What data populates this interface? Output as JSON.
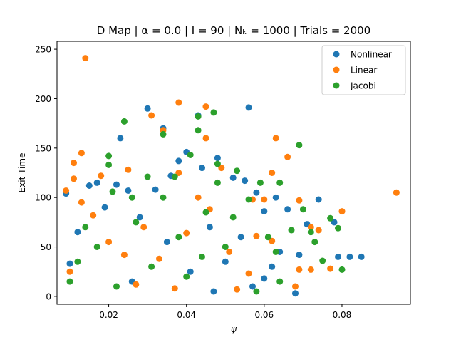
{
  "chart_data": {
    "type": "scatter",
    "title": "D Map | α = 0.0 | I = 90 | Nₖ = 1000 | Trials = 2000",
    "xlabel": "ψ",
    "ylabel": "Exit Time",
    "xlim": [
      0.0067,
      0.0976
    ],
    "ylim": [
      -8,
      258
    ],
    "xticks": [
      0.02,
      0.04,
      0.06,
      0.08
    ],
    "xtick_labels": [
      "0.02",
      "0.04",
      "0.06",
      "0.08"
    ],
    "yticks": [
      0,
      50,
      100,
      150,
      200,
      250
    ],
    "ytick_labels": [
      "0",
      "50",
      "100",
      "150",
      "200",
      "250"
    ],
    "grid": false,
    "legend_position": "top-right",
    "series": [
      {
        "name": "Nonlinear",
        "color": "#1f77b4",
        "points": [
          [
            0.03,
            190
          ],
          [
            0.056,
            191
          ],
          [
            0.034,
            170
          ],
          [
            0.023,
            160
          ],
          [
            0.043,
            183
          ],
          [
            0.04,
            146
          ],
          [
            0.038,
            137
          ],
          [
            0.048,
            140
          ],
          [
            0.036,
            122
          ],
          [
            0.044,
            130
          ],
          [
            0.015,
            112
          ],
          [
            0.017,
            115
          ],
          [
            0.022,
            113
          ],
          [
            0.052,
            120
          ],
          [
            0.055,
            117
          ],
          [
            0.025,
            107
          ],
          [
            0.032,
            108
          ],
          [
            0.058,
            105
          ],
          [
            0.009,
            104
          ],
          [
            0.063,
            100
          ],
          [
            0.074,
            98
          ],
          [
            0.066,
            88
          ],
          [
            0.06,
            86
          ],
          [
            0.071,
            73
          ],
          [
            0.078,
            75
          ],
          [
            0.082,
            40
          ],
          [
            0.085,
            40
          ],
          [
            0.079,
            40
          ],
          [
            0.069,
            42
          ],
          [
            0.064,
            45
          ],
          [
            0.068,
            3
          ],
          [
            0.06,
            18
          ],
          [
            0.062,
            30
          ],
          [
            0.054,
            60
          ],
          [
            0.046,
            70
          ],
          [
            0.028,
            80
          ],
          [
            0.019,
            90
          ],
          [
            0.012,
            65
          ],
          [
            0.01,
            33
          ],
          [
            0.035,
            55
          ],
          [
            0.041,
            25
          ],
          [
            0.05,
            35
          ],
          [
            0.057,
            10
          ],
          [
            0.047,
            5
          ],
          [
            0.026,
            15
          ]
        ]
      },
      {
        "name": "Linear",
        "color": "#ff7f0e",
        "points": [
          [
            0.014,
            241
          ],
          [
            0.038,
            196
          ],
          [
            0.045,
            192
          ],
          [
            0.031,
            183
          ],
          [
            0.034,
            168
          ],
          [
            0.045,
            160
          ],
          [
            0.063,
            160
          ],
          [
            0.013,
            145
          ],
          [
            0.011,
            135
          ],
          [
            0.025,
            128
          ],
          [
            0.066,
            141
          ],
          [
            0.062,
            125
          ],
          [
            0.049,
            130
          ],
          [
            0.038,
            125
          ],
          [
            0.018,
            122
          ],
          [
            0.011,
            119
          ],
          [
            0.009,
            107
          ],
          [
            0.043,
            100
          ],
          [
            0.057,
            98
          ],
          [
            0.06,
            98
          ],
          [
            0.069,
            97
          ],
          [
            0.094,
            105
          ],
          [
            0.08,
            86
          ],
          [
            0.072,
            70
          ],
          [
            0.074,
            67
          ],
          [
            0.069,
            27
          ],
          [
            0.072,
            27
          ],
          [
            0.077,
            28
          ],
          [
            0.062,
            56
          ],
          [
            0.068,
            10
          ],
          [
            0.056,
            23
          ],
          [
            0.051,
            45
          ],
          [
            0.04,
            64
          ],
          [
            0.033,
            38
          ],
          [
            0.027,
            12
          ],
          [
            0.02,
            55
          ],
          [
            0.016,
            82
          ],
          [
            0.013,
            95
          ],
          [
            0.01,
            25
          ],
          [
            0.046,
            88
          ],
          [
            0.053,
            7
          ],
          [
            0.037,
            8
          ],
          [
            0.029,
            70
          ],
          [
            0.024,
            42
          ],
          [
            0.058,
            61
          ]
        ]
      },
      {
        "name": "Jacobi",
        "color": "#2ca02c",
        "points": [
          [
            0.024,
            177
          ],
          [
            0.047,
            186
          ],
          [
            0.043,
            182
          ],
          [
            0.043,
            168
          ],
          [
            0.034,
            164
          ],
          [
            0.02,
            142
          ],
          [
            0.041,
            143
          ],
          [
            0.053,
            127
          ],
          [
            0.02,
            133
          ],
          [
            0.048,
            134
          ],
          [
            0.037,
            121
          ],
          [
            0.021,
            106
          ],
          [
            0.03,
            121
          ],
          [
            0.064,
            115
          ],
          [
            0.069,
            153
          ],
          [
            0.059,
            115
          ],
          [
            0.048,
            115
          ],
          [
            0.026,
            100
          ],
          [
            0.034,
            100
          ],
          [
            0.056,
            98
          ],
          [
            0.07,
            88
          ],
          [
            0.077,
            79
          ],
          [
            0.079,
            69
          ],
          [
            0.067,
            67
          ],
          [
            0.072,
            65
          ],
          [
            0.08,
            27
          ],
          [
            0.075,
            36
          ],
          [
            0.073,
            55
          ],
          [
            0.061,
            60
          ],
          [
            0.064,
            15
          ],
          [
            0.058,
            5
          ],
          [
            0.063,
            45
          ],
          [
            0.05,
            50
          ],
          [
            0.045,
            85
          ],
          [
            0.038,
            60
          ],
          [
            0.031,
            30
          ],
          [
            0.027,
            75
          ],
          [
            0.022,
            10
          ],
          [
            0.017,
            50
          ],
          [
            0.012,
            35
          ],
          [
            0.01,
            15
          ],
          [
            0.014,
            70
          ],
          [
            0.04,
            20
          ],
          [
            0.044,
            40
          ],
          [
            0.052,
            80
          ]
        ]
      }
    ]
  }
}
